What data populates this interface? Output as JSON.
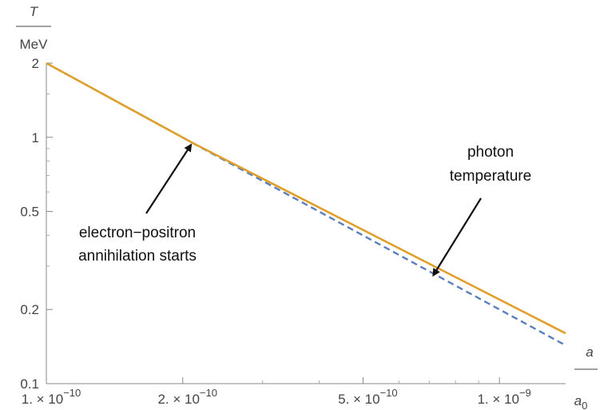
{
  "chart_data": {
    "type": "line",
    "x_scale": "log",
    "y_scale": "log",
    "xlim": [
      1e-10,
      1.4e-09
    ],
    "ylim": [
      0.1,
      2
    ],
    "x_axis_label": {
      "numerator": "a",
      "denominator": "a",
      "denominator_subscript": "0"
    },
    "y_axis_label": {
      "numerator": "T",
      "denominator": "MeV"
    },
    "x_ticks": [
      {
        "value": 1e-10,
        "mantissa": "1. × 10",
        "exponent": "−10"
      },
      {
        "value": 2e-10,
        "mantissa": "2. × 10",
        "exponent": "−10"
      },
      {
        "value": 5e-10,
        "mantissa": "5. × 10",
        "exponent": "−10"
      },
      {
        "value": 1e-09,
        "mantissa": "1. × 10",
        "exponent": "−9"
      }
    ],
    "y_ticks": [
      {
        "value": 2,
        "label": "2"
      },
      {
        "value": 1,
        "label": "1"
      },
      {
        "value": 0.5,
        "label": "0.5"
      },
      {
        "value": 0.2,
        "label": "0.2"
      },
      {
        "value": 0.1,
        "label": "0.1"
      }
    ],
    "y_minor_ticks": [
      0.3,
      0.4,
      0.6,
      0.7,
      0.8,
      0.9,
      1.5
    ],
    "x_minor_ticks": [
      3e-10,
      4e-10,
      6e-10,
      7e-10,
      8e-10,
      9e-10
    ],
    "grid": false,
    "series": [
      {
        "style": "solid",
        "color": "#E09F2A",
        "x": [
          1e-10,
          2.1e-10,
          1.4e-09
        ],
        "y": [
          2.0,
          0.95,
          0.16
        ]
      },
      {
        "style": "dashed",
        "color": "#5A7FBD",
        "x": [
          1e-10,
          2.1e-10,
          1.4e-09
        ],
        "y": [
          2.0,
          0.95,
          0.143
        ]
      }
    ],
    "annotations": [
      {
        "lines": [
          "electron−positron",
          "annihilation starts"
        ],
        "arrow_tip": {
          "x": 2.1e-10,
          "y": 0.95
        }
      },
      {
        "lines": [
          "photon",
          "temperature"
        ],
        "arrow_tip": {
          "x": 7.1e-10,
          "y": 0.27
        }
      }
    ]
  }
}
